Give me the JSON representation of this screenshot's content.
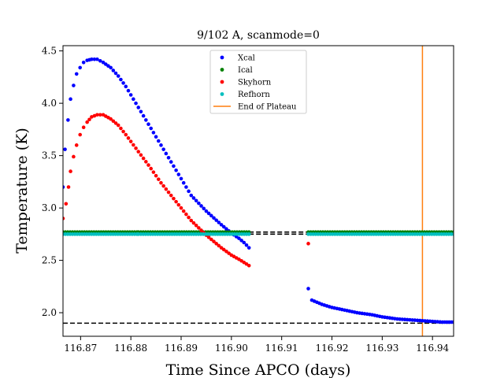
{
  "chart_data": {
    "type": "scatter",
    "title": "9/102 A, scanmode=0",
    "xlabel": "Time Since APCO (days)",
    "ylabel": "Temperature (K)",
    "xlim": [
      116.8665,
      116.9442
    ],
    "ylim": [
      1.775,
      4.55
    ],
    "xticks": [
      "116.87",
      "116.88",
      "116.89",
      "116.90",
      "116.91",
      "116.92",
      "116.93",
      "116.94"
    ],
    "yticks": [
      "2.0",
      "2.5",
      "3.0",
      "3.5",
      "4.0",
      "4.5"
    ],
    "xtick_values": [
      116.87,
      116.88,
      116.89,
      116.9,
      116.91,
      116.92,
      116.93,
      116.94
    ],
    "ytick_values": [
      2.0,
      2.5,
      3.0,
      3.5,
      4.0,
      4.5
    ],
    "grid": false,
    "legend_position": "top-center",
    "series": [
      {
        "name": "Xcal",
        "color": "#0000ff",
        "marker": "dot",
        "segments": [
          {
            "x_start": 116.8665,
            "x_end": 116.9035,
            "points": [
              [
                116.8665,
                3.2
              ],
              [
                116.8669,
                3.56
              ],
              [
                116.8675,
                3.84
              ],
              [
                116.868,
                4.04
              ],
              [
                116.8686,
                4.17
              ],
              [
                116.8692,
                4.28
              ],
              [
                116.8699,
                4.34
              ],
              [
                116.8706,
                4.39
              ],
              [
                116.8713,
                4.41
              ],
              [
                116.8722,
                4.42
              ],
              [
                116.8733,
                4.42
              ],
              [
                116.8745,
                4.39
              ],
              [
                116.876,
                4.34
              ],
              [
                116.8775,
                4.26
              ],
              [
                116.879,
                4.16
              ],
              [
                116.881,
                4.0
              ],
              [
                116.8835,
                3.8
              ],
              [
                116.886,
                3.6
              ],
              [
                116.889,
                3.36
              ],
              [
                116.892,
                3.12
              ],
              [
                116.895,
                2.97
              ],
              [
                116.898,
                2.84
              ],
              [
                116.9,
                2.76
              ],
              [
                116.9015,
                2.71
              ],
              [
                116.9025,
                2.67
              ],
              [
                116.9035,
                2.62
              ]
            ]
          },
          {
            "x_start": 116.9153,
            "x_end": 116.9442,
            "points": [
              [
                116.9153,
                2.23
              ],
              [
                116.916,
                2.12
              ],
              [
                116.917,
                2.1
              ],
              [
                116.918,
                2.08
              ],
              [
                116.92,
                2.05
              ],
              [
                116.922,
                2.03
              ],
              [
                116.925,
                2.0
              ],
              [
                116.928,
                1.98
              ],
              [
                116.93,
                1.96
              ],
              [
                116.933,
                1.94
              ],
              [
                116.936,
                1.93
              ],
              [
                116.939,
                1.92
              ],
              [
                116.942,
                1.91
              ],
              [
                116.9442,
                1.91
              ]
            ]
          }
        ]
      },
      {
        "name": "Ical",
        "color": "#008000",
        "marker": "dot",
        "segments": [
          {
            "x_start": 116.8665,
            "x_end": 116.8812,
            "y": 2.77
          },
          {
            "x_start": 116.8815,
            "x_end": 116.9035,
            "y": 2.77
          },
          {
            "x_start": 116.9153,
            "x_end": 116.9442,
            "y": 2.77
          }
        ]
      },
      {
        "name": "Skyhorn",
        "color": "#ff0000",
        "marker": "dot",
        "segments": [
          {
            "x_start": 116.8665,
            "x_end": 116.9035,
            "points": [
              [
                116.8665,
                2.9
              ],
              [
                116.8671,
                3.04
              ],
              [
                116.8676,
                3.2
              ],
              [
                116.868,
                3.35
              ],
              [
                116.8686,
                3.49
              ],
              [
                116.8692,
                3.6
              ],
              [
                116.8699,
                3.7
              ],
              [
                116.8706,
                3.77
              ],
              [
                116.8713,
                3.82
              ],
              [
                116.8722,
                3.87
              ],
              [
                116.8733,
                3.89
              ],
              [
                116.8745,
                3.89
              ],
              [
                116.876,
                3.85
              ],
              [
                116.8775,
                3.79
              ],
              [
                116.879,
                3.7
              ],
              [
                116.881,
                3.57
              ],
              [
                116.8835,
                3.41
              ],
              [
                116.886,
                3.24
              ],
              [
                116.889,
                3.06
              ],
              [
                116.892,
                2.88
              ],
              [
                116.895,
                2.74
              ],
              [
                116.898,
                2.62
              ],
              [
                116.9,
                2.55
              ],
              [
                116.9015,
                2.51
              ],
              [
                116.9025,
                2.48
              ],
              [
                116.9035,
                2.45
              ]
            ]
          },
          {
            "x_start": 116.9153,
            "x_end": 116.9153,
            "points": [
              [
                116.9153,
                2.66
              ]
            ]
          }
        ]
      },
      {
        "name": "Refhorn",
        "color": "#00bfbf",
        "marker": "dot",
        "segments": [
          {
            "x_start": 116.8665,
            "x_end": 116.8812,
            "y": 2.75
          },
          {
            "x_start": 116.8815,
            "x_end": 116.9035,
            "y": 2.75
          },
          {
            "x_start": 116.9153,
            "x_end": 116.9442,
            "y": 2.75
          }
        ]
      }
    ],
    "reference_lines": [
      {
        "name": "End of Plateau",
        "orientation": "vertical",
        "x": 116.938,
        "color": "#ff7f0e"
      },
      {
        "orientation": "horizontal",
        "y": 2.77,
        "x_from": 116.9035,
        "x_to": 116.9153,
        "style": "dashed",
        "color": "#000000"
      },
      {
        "orientation": "horizontal",
        "y": 2.75,
        "x_from": 116.9035,
        "x_to": 116.9153,
        "style": "dashed",
        "color": "#000000"
      },
      {
        "orientation": "horizontal",
        "y": 1.9,
        "style": "dashed",
        "color": "#000000"
      }
    ]
  }
}
